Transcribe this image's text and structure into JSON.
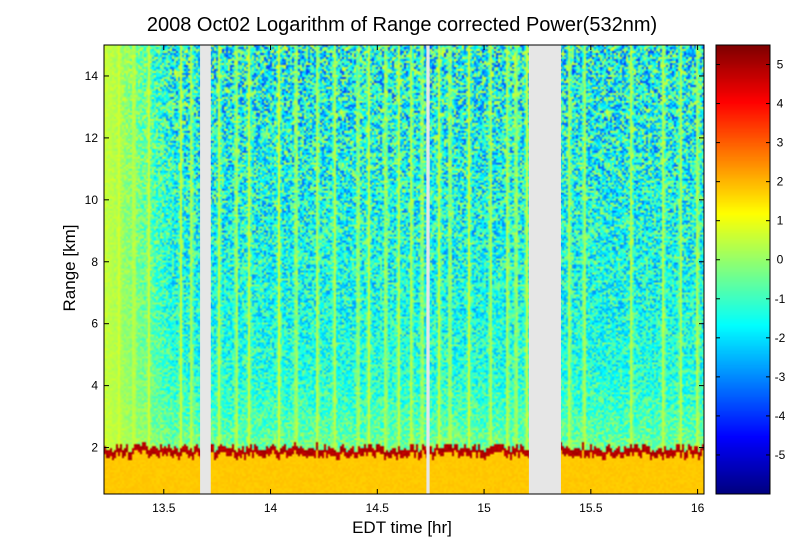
{
  "chart_data": {
    "type": "heatmap",
    "title": "2008 Oct02  Logarithm of Range corrected Power(532nm)",
    "xlabel": "EDT time [hr]",
    "ylabel": "Range [km]",
    "xlim": [
      13.22,
      16.03
    ],
    "ylim": [
      0.5,
      15.0
    ],
    "x_ticks": [
      "13.5",
      "14",
      "14.5",
      "15",
      "15.5",
      "16"
    ],
    "x_tick_values": [
      13.5,
      14.0,
      14.5,
      15.0,
      15.5,
      16.0
    ],
    "y_ticks": [
      "2",
      "4",
      "6",
      "8",
      "10",
      "12",
      "14"
    ],
    "y_tick_values": [
      2,
      4,
      6,
      8,
      10,
      12,
      14
    ],
    "colorbar": {
      "range": [
        -6.0,
        5.5
      ],
      "tick_labels": [
        "5",
        "4",
        "3",
        "2",
        "1",
        "0",
        "-1",
        "-2",
        "-3",
        "-4",
        "-5"
      ],
      "tick_values": [
        5,
        4,
        3,
        2,
        1,
        0,
        -1,
        -2,
        -3,
        -4,
        -5
      ],
      "colormap": "jet"
    },
    "data_gaps_hr": [
      [
        13.67,
        13.72
      ],
      [
        14.73,
        14.745
      ],
      [
        15.21,
        15.36
      ]
    ],
    "gap_color": "#e6e6e6",
    "boundary_layer_top_km": 1.9,
    "boundary_layer_value": 1.8,
    "boundary_layer_top_value": 5.2,
    "free_troposphere_value": -1.5,
    "features": {
      "cloud_columns_hr": [
        13.29,
        13.36,
        13.43,
        13.58,
        13.63,
        13.76,
        13.84,
        13.9,
        14.04,
        14.12,
        14.22,
        14.3,
        14.41,
        14.46,
        14.54,
        14.6,
        14.66,
        14.71,
        14.79,
        14.84,
        14.93,
        15.03,
        15.11,
        15.15,
        15.2,
        15.4,
        15.47,
        15.69,
        15.84,
        15.92,
        16.0
      ]
    }
  }
}
